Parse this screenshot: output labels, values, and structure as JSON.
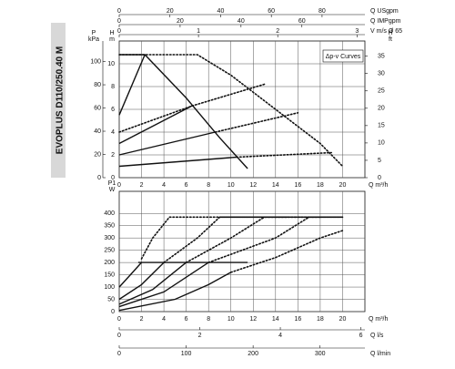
{
  "product_label": "EVOPLUS D110/250.40 M",
  "chart_data": [
    {
      "type": "line",
      "xlabel": "Q m³/h",
      "ylabel": "H",
      "yunit": "m",
      "xlim": [
        0,
        22
      ],
      "xticks": [
        0,
        2,
        4,
        6,
        8,
        10,
        12,
        14,
        16,
        18,
        20
      ],
      "ylim": [
        0,
        12
      ],
      "yticks": [
        0,
        2,
        4,
        6,
        8,
        10
      ],
      "y2label": "H",
      "y2unit": "ft",
      "y2lim": [
        0,
        39.37
      ],
      "y2ticks": [
        0,
        5,
        10,
        15,
        20,
        25,
        30,
        35
      ],
      "y3label": "P",
      "y3unit": "kPa",
      "y3lim": [
        0,
        117.7
      ],
      "y3ticks": [
        0,
        20,
        40,
        60,
        80,
        100
      ],
      "grid": true,
      "annotation": "Δp-v Curves",
      "extra_x_axes": [
        {
          "side": "top",
          "label": "Q USgpm",
          "lim": [
            0,
            96.9
          ],
          "ticks": [
            0,
            20,
            40,
            60,
            80
          ]
        },
        {
          "side": "top",
          "label": "Q IMPgpm",
          "lim": [
            0,
            80.7
          ],
          "ticks": [
            0,
            20,
            40,
            60
          ]
        },
        {
          "side": "top",
          "label": "V m/s Ø 65",
          "lim": [
            0,
            3.1
          ],
          "ticks": [
            0,
            1,
            2,
            3
          ]
        }
      ],
      "series": [
        {
          "color": "#111",
          "style": "dotted",
          "x": [
            0,
            7,
            10,
            14,
            18,
            20
          ],
          "values": [
            10.8,
            10.8,
            9,
            6,
            3,
            1
          ]
        },
        {
          "color": "#111",
          "style": "solid",
          "x": [
            0,
            2.3,
            6,
            9,
            11.5
          ],
          "values": [
            10.8,
            10.8,
            7,
            3.5,
            0.8
          ]
        },
        {
          "color": "#111",
          "style": "solid",
          "x": [
            0,
            2.3
          ],
          "values": [
            5.5,
            10.8
          ]
        },
        {
          "color": "#111",
          "style": "solid",
          "x": [
            0,
            6.5
          ],
          "values": [
            3,
            6.3
          ]
        },
        {
          "color": "#111",
          "style": "solid",
          "x": [
            0,
            8.6
          ],
          "values": [
            2,
            4
          ]
        },
        {
          "color": "#111",
          "style": "solid",
          "x": [
            0,
            10.5
          ],
          "values": [
            1,
            1.8
          ]
        },
        {
          "color": "#111",
          "style": "dotted",
          "x": [
            0,
            6.5,
            13
          ],
          "values": [
            4,
            6.3,
            8.2
          ]
        },
        {
          "color": "#111",
          "style": "dotted",
          "x": [
            8.6,
            16
          ],
          "values": [
            4,
            5.7
          ]
        },
        {
          "color": "#111",
          "style": "dotted",
          "x": [
            10.5,
            19
          ],
          "values": [
            1.8,
            2.2
          ]
        }
      ]
    },
    {
      "type": "line",
      "xlabel": "Q m³/h",
      "ylabel": "P1",
      "yunit": "W",
      "xlim": [
        0,
        22
      ],
      "xticks": [
        0,
        2,
        4,
        6,
        8,
        10,
        12,
        14,
        16,
        18,
        20
      ],
      "ylim": [
        0,
        490
      ],
      "yticks": [
        0,
        50,
        100,
        150,
        200,
        250,
        300,
        350,
        400
      ],
      "grid": true,
      "extra_x_axes": [
        {
          "side": "bottom",
          "label": "Q l/s",
          "lim": [
            0,
            6.1
          ],
          "ticks": [
            0,
            2,
            4,
            6
          ]
        },
        {
          "side": "bottom",
          "label": "Q l/min",
          "lim": [
            0,
            367
          ],
          "ticks": [
            0,
            100,
            200,
            300
          ]
        }
      ],
      "series": [
        {
          "color": "#111",
          "style": "solid",
          "x": [
            1.7,
            11.5
          ],
          "values": [
            200,
            200
          ]
        },
        {
          "color": "#111",
          "style": "solid",
          "x": [
            0,
            1,
            2
          ],
          "values": [
            100,
            150,
            200
          ]
        },
        {
          "color": "#111",
          "style": "solid",
          "x": [
            0,
            2,
            4
          ],
          "values": [
            50,
            110,
            200
          ]
        },
        {
          "color": "#111",
          "style": "solid",
          "x": [
            0,
            3,
            6
          ],
          "values": [
            30,
            90,
            200
          ]
        },
        {
          "color": "#111",
          "style": "solid",
          "x": [
            0,
            4,
            8
          ],
          "values": [
            20,
            80,
            200
          ]
        },
        {
          "color": "#111",
          "style": "solid",
          "x": [
            0,
            5,
            8,
            10
          ],
          "values": [
            5,
            50,
            110,
            160
          ]
        },
        {
          "color": "#111",
          "style": "dotted",
          "x": [
            2,
            3,
            4.5,
            20
          ],
          "values": [
            215,
            300,
            385,
            385
          ]
        },
        {
          "color": "#111",
          "style": "dotted",
          "x": [
            4,
            7,
            9,
            15
          ],
          "values": [
            200,
            300,
            385,
            385
          ]
        },
        {
          "color": "#111",
          "style": "dotted",
          "x": [
            6,
            10,
            13,
            18
          ],
          "values": [
            200,
            300,
            385,
            385
          ]
        },
        {
          "color": "#111",
          "style": "dotted",
          "x": [
            8,
            14,
            17,
            20
          ],
          "values": [
            200,
            300,
            385,
            385
          ]
        },
        {
          "color": "#111",
          "style": "dotted",
          "x": [
            10,
            14,
            18,
            20
          ],
          "values": [
            160,
            220,
            300,
            330
          ]
        }
      ]
    }
  ]
}
